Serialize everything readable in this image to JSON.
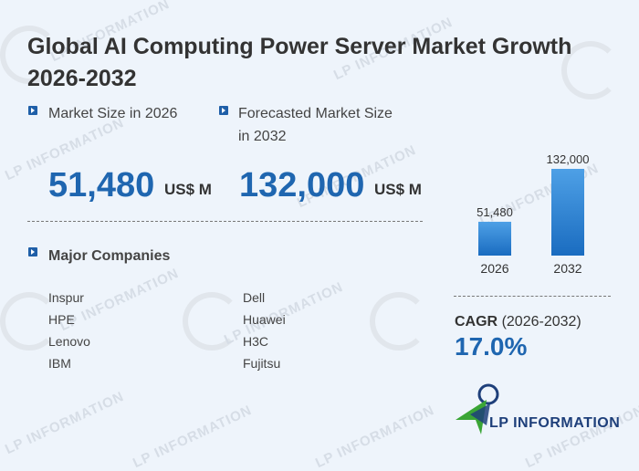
{
  "title": "Global AI Computing Power Server Market Growth 2026-2032",
  "watermark": "LP INFORMATION",
  "market_size_label": "Market Size in 2026",
  "market_size_value": "51,480",
  "market_size_unit": "US$ M",
  "forecast_label_line1": "Forecasted Market Size",
  "forecast_label_line2": "in 2032",
  "forecast_value": "132,000",
  "forecast_unit": "US$ M",
  "companies_heading": "Major Companies",
  "companies": [
    "Inspur",
    "HPE",
    "Lenovo",
    "IBM",
    "Dell",
    "Huawei",
    "H3C",
    "Fujitsu"
  ],
  "cagr_label": "CAGR",
  "cagr_period": "(2026-2032)",
  "cagr_value": "17.0%",
  "logo_text": "LP INFORMATION",
  "colors": {
    "accent": "#1f66b0",
    "bar_top": "#4ea0e6",
    "bar_bottom": "#1a6cc0",
    "logo_green": "#3aa535"
  },
  "chart_data": {
    "type": "bar",
    "categories": [
      "2026",
      "2032"
    ],
    "values": [
      51480,
      132000
    ],
    "value_labels": [
      "51,480",
      "132,000"
    ],
    "title": "",
    "xlabel": "",
    "ylabel": ""
  }
}
